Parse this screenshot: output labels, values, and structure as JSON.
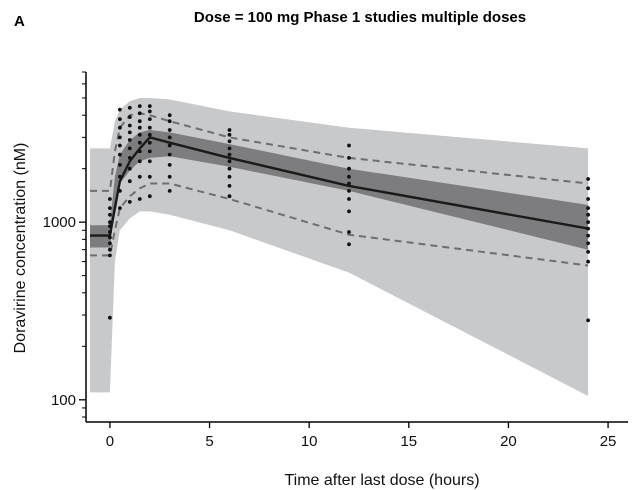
{
  "chart_data": {
    "type": "line",
    "panel_label": "A",
    "title": "Dose = 100 mg Phase 1 studies multiple doses",
    "xlabel": "Time after last dose (hours)",
    "ylabel": "Doravirine concentration (nM)",
    "x_scale": "linear",
    "y_scale": "log",
    "xlim": [
      -1.2,
      26
    ],
    "ylim": [
      75,
      7000
    ],
    "x_ticks": [
      {
        "value": 0,
        "label": "0"
      },
      {
        "value": 5,
        "label": "5"
      },
      {
        "value": 10,
        "label": "10"
      },
      {
        "value": 15,
        "label": "15"
      },
      {
        "value": 20,
        "label": "20"
      },
      {
        "value": 25,
        "label": "25"
      }
    ],
    "y_ticks": [
      {
        "value": 100,
        "label": "100"
      },
      {
        "value": 1000,
        "label": "1000"
      }
    ],
    "grid": false,
    "bands": [
      {
        "role": "prediction-interval-outer",
        "color": "#c8c9cb",
        "x": [
          -1,
          0,
          0.25,
          0.5,
          1,
          1.5,
          2,
          3,
          6,
          12,
          24
        ],
        "upper": [
          2600,
          2600,
          3700,
          4300,
          4800,
          5000,
          5000,
          4900,
          4200,
          3400,
          2600
        ],
        "lower": [
          110,
          110,
          600,
          900,
          1050,
          1150,
          1150,
          1100,
          900,
          520,
          105
        ]
      },
      {
        "role": "prediction-interval-median",
        "color": "#7d7d7f",
        "x": [
          -1,
          0,
          0.25,
          0.5,
          1,
          1.5,
          2,
          3,
          6,
          12,
          24
        ],
        "upper": [
          960,
          960,
          1800,
          2400,
          2900,
          3200,
          3300,
          3200,
          2750,
          2000,
          1250
        ],
        "lower": [
          720,
          720,
          1250,
          1650,
          1950,
          2200,
          2300,
          2350,
          2050,
          1500,
          700
        ]
      }
    ],
    "series": [
      {
        "role": "observed-median",
        "style": "solid",
        "color": "#1a1a1a",
        "x": [
          -1,
          0,
          0.25,
          0.5,
          1,
          1.5,
          2,
          3,
          6,
          12,
          24
        ],
        "values": [
          840,
          840,
          1200,
          1700,
          2200,
          2600,
          3000,
          2800,
          2300,
          1600,
          920
        ]
      },
      {
        "role": "observed-95th-percentile",
        "style": "dashed",
        "color": "#6e6e70",
        "x": [
          -1,
          0,
          0.25,
          0.5,
          1,
          1.5,
          2,
          3,
          6,
          12,
          24
        ],
        "values": [
          1500,
          1500,
          2500,
          3400,
          4000,
          4100,
          4000,
          3700,
          3000,
          2300,
          1650
        ]
      },
      {
        "role": "observed-5th-percentile",
        "style": "dashed",
        "color": "#6e6e70",
        "x": [
          -1,
          0,
          0.25,
          0.5,
          1,
          1.5,
          2,
          3,
          6,
          12,
          24
        ],
        "values": [
          650,
          650,
          900,
          1200,
          1400,
          1550,
          1650,
          1650,
          1350,
          850,
          570
        ]
      }
    ],
    "scatter": {
      "color": "#111111",
      "points": [
        [
          0,
          290
        ],
        [
          0,
          650
        ],
        [
          0,
          700
        ],
        [
          0,
          760
        ],
        [
          0,
          820
        ],
        [
          0,
          880
        ],
        [
          0,
          950
        ],
        [
          0,
          1000
        ],
        [
          0,
          1100
        ],
        [
          0,
          1200
        ],
        [
          0,
          1350
        ],
        [
          0.5,
          1200
        ],
        [
          0.5,
          1500
        ],
        [
          0.5,
          1800
        ],
        [
          0.5,
          2100
        ],
        [
          0.5,
          2400
        ],
        [
          0.5,
          2700
        ],
        [
          0.5,
          3000
        ],
        [
          0.5,
          3400
        ],
        [
          0.5,
          3800
        ],
        [
          0.5,
          4300
        ],
        [
          1,
          1300
        ],
        [
          1,
          1700
        ],
        [
          1,
          2000
        ],
        [
          1,
          2300
        ],
        [
          1,
          2600
        ],
        [
          1,
          2900
        ],
        [
          1,
          3200
        ],
        [
          1,
          3500
        ],
        [
          1,
          3900
        ],
        [
          1,
          4400
        ],
        [
          1.5,
          1350
        ],
        [
          1.5,
          1800
        ],
        [
          1.5,
          2200
        ],
        [
          1.5,
          2500
        ],
        [
          1.5,
          2800
        ],
        [
          1.5,
          3100
        ],
        [
          1.5,
          3400
        ],
        [
          1.5,
          3700
        ],
        [
          1.5,
          4100
        ],
        [
          1.5,
          4500
        ],
        [
          2,
          1400
        ],
        [
          2,
          1800
        ],
        [
          2,
          2200
        ],
        [
          2,
          2500
        ],
        [
          2,
          2800
        ],
        [
          2,
          3100
        ],
        [
          2,
          3400
        ],
        [
          2,
          3800
        ],
        [
          2,
          4200
        ],
        [
          2,
          4500
        ],
        [
          3,
          1500
        ],
        [
          3,
          1800
        ],
        [
          3,
          2100
        ],
        [
          3,
          2400
        ],
        [
          3,
          2700
        ],
        [
          3,
          3000
        ],
        [
          3,
          3300
        ],
        [
          3,
          3700
        ],
        [
          3,
          4000
        ],
        [
          6,
          1400
        ],
        [
          6,
          1600
        ],
        [
          6,
          1800
        ],
        [
          6,
          2000
        ],
        [
          6,
          2200
        ],
        [
          6,
          2400
        ],
        [
          6,
          2600
        ],
        [
          6,
          2850
        ],
        [
          6,
          3100
        ],
        [
          6,
          3300
        ],
        [
          12,
          750
        ],
        [
          12,
          880
        ],
        [
          12,
          1150
        ],
        [
          12,
          1350
        ],
        [
          12,
          1500
        ],
        [
          12,
          1650
        ],
        [
          12,
          1800
        ],
        [
          12,
          2000
        ],
        [
          12,
          2300
        ],
        [
          12,
          2700
        ],
        [
          24,
          280
        ],
        [
          24,
          600
        ],
        [
          24,
          680
        ],
        [
          24,
          760
        ],
        [
          24,
          840
        ],
        [
          24,
          920
        ],
        [
          24,
          1000
        ],
        [
          24,
          1100
        ],
        [
          24,
          1200
        ],
        [
          24,
          1350
        ],
        [
          24,
          1550
        ],
        [
          24,
          1750
        ]
      ]
    }
  }
}
